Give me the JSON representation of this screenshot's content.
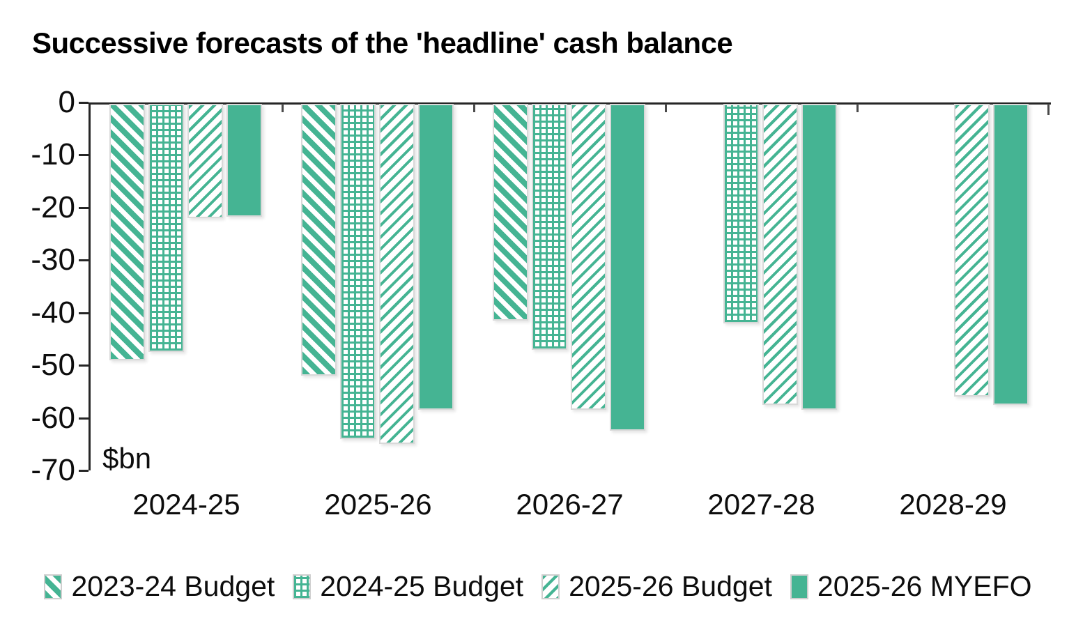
{
  "title": "Successive forecasts of the 'headline' cash balance",
  "chart_data": {
    "type": "bar",
    "title": "Successive forecasts of the 'headline' cash balance",
    "unit_label": "$bn",
    "categories": [
      "2024-25",
      "2025-26",
      "2026-27",
      "2027-28",
      "2028-29"
    ],
    "series": [
      {
        "name": "2023-24 Budget",
        "pattern": "diagonal-down",
        "values": [
          -49,
          -52,
          -41.5,
          null,
          null
        ]
      },
      {
        "name": "2024-25 Budget",
        "pattern": "dotted-grid",
        "values": [
          -47.5,
          -64,
          -47,
          -42,
          null
        ]
      },
      {
        "name": "2025-26 Budget",
        "pattern": "diagonal-up-light",
        "values": [
          -22,
          -65,
          -58.5,
          -57.5,
          -56
        ]
      },
      {
        "name": "2025-26 MYEFO",
        "pattern": "solid",
        "values": [
          -21.7,
          -58.5,
          -62.5,
          -58.5,
          -57.5
        ]
      }
    ],
    "y_axis": {
      "min": -70,
      "max": 0,
      "tick_step": 10,
      "tick_labels": [
        "0",
        "-10",
        "-20",
        "-30",
        "-40",
        "-50",
        "-60",
        "-70"
      ]
    },
    "colors": {
      "accent": "#45B493",
      "bar_border": "#D9D9D9",
      "axis": "#262626",
      "text": "#000000"
    },
    "legend_position": "bottom",
    "grid": false
  }
}
